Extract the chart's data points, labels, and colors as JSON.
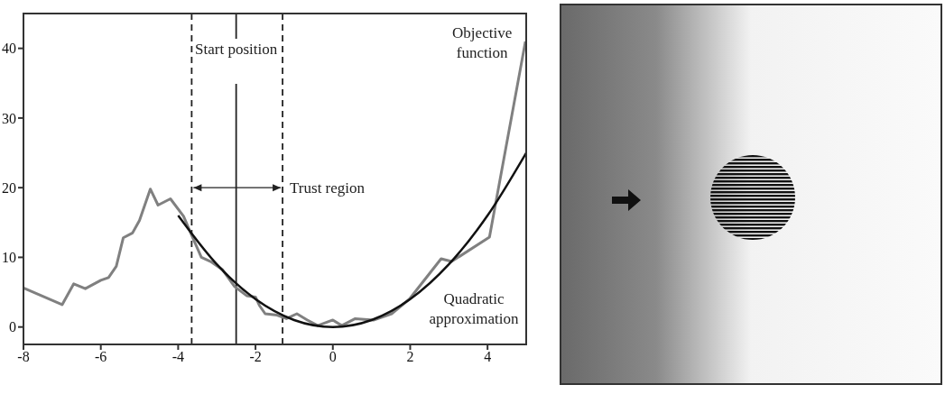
{
  "chart_data": {
    "type": "line",
    "xlim": [
      -8,
      5
    ],
    "xticks": [
      -8,
      -6,
      -4,
      -2,
      0,
      2,
      4
    ],
    "ylim": [
      -2.5,
      45
    ],
    "yticks": [
      0,
      10,
      20,
      30,
      40
    ],
    "marker": "none",
    "series": [
      {
        "name": "Objective function",
        "color": "#808080",
        "x": [
          -8,
          -7.0,
          -6.7,
          -6.4,
          -6,
          -5.8,
          -5.6,
          -5.42,
          -5.18,
          -5.0,
          -4.72,
          -4.52,
          -4.2,
          -3.86,
          -3.63,
          -3.4,
          -3.16,
          -2.85,
          -2.54,
          -2.23,
          -2.0,
          -1.9,
          -1.75,
          -1.44,
          -1.2,
          -0.93,
          -0.66,
          -0.39,
          0,
          0.23,
          0.58,
          1.05,
          1.52,
          1.98,
          2.8,
          3.07,
          4.05,
          4.98
        ],
        "values": [
          5.6,
          3.2,
          6.2,
          5.5,
          6.7,
          7.1,
          8.7,
          12.8,
          13.5,
          15.3,
          19.8,
          17.5,
          18.4,
          15.9,
          12.9,
          10,
          9.4,
          8.2,
          5.8,
          4.5,
          4.3,
          3.1,
          1.9,
          1.7,
          1.2,
          1.9,
          1.0,
          0.2,
          1.0,
          0.2,
          1.2,
          1.0,
          1.9,
          4.0,
          9.8,
          9.4,
          12.9,
          41
        ]
      },
      {
        "name": "Quadratic approximation",
        "color": "#111111",
        "x": [
          -4,
          -3,
          -2,
          -1,
          0,
          1,
          2,
          3,
          4,
          5
        ],
        "values": [
          16,
          9,
          4,
          1,
          0,
          1,
          4,
          9,
          16,
          25
        ]
      }
    ],
    "ref_lines": [
      {
        "axis": "x",
        "value": -2.5,
        "label": "Start position",
        "color": "#222222",
        "line_style": "solid"
      },
      {
        "axis": "x",
        "value": -3.65,
        "color": "#222222",
        "line_style": "dashed"
      },
      {
        "axis": "x",
        "value": -1.3,
        "color": "#222222",
        "line_style": "dashed"
      }
    ],
    "annotations": [
      {
        "text": "Trust region",
        "x": -1.3,
        "y": 20
      }
    ]
  }
}
